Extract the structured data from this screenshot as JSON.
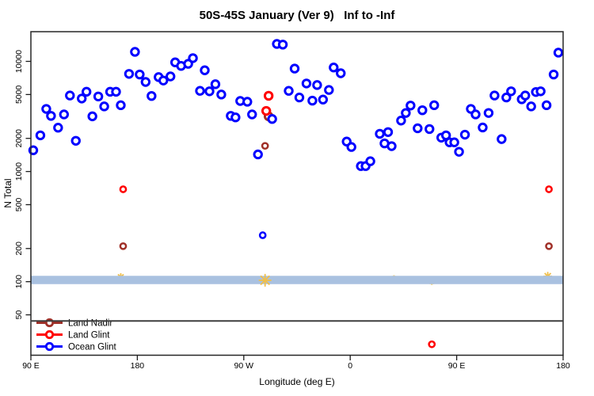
{
  "title": "50S-45S January (Ver 9)   Inf to -Inf",
  "chart_data": {
    "type": "scatter",
    "title": "50S-45S January (Ver 9)   Inf to -Inf",
    "xlabel": "Longitude (deg E)",
    "ylabel": "N Total",
    "grid": false,
    "x_axis": {
      "min": 90,
      "max": 540,
      "ticks": [
        {
          "value": 90,
          "label": "90 E"
        },
        {
          "value": 180,
          "label": "180"
        },
        {
          "value": 270,
          "label": "90 W"
        },
        {
          "value": 360,
          "label": "0"
        },
        {
          "value": 450,
          "label": "90 E"
        },
        {
          "value": 540,
          "label": "180"
        }
      ]
    },
    "y_axis": {
      "scale": "log",
      "min": 21.5,
      "max": 18600,
      "ticks": [
        50,
        100,
        200,
        500,
        1000,
        2000,
        5000,
        10000
      ]
    },
    "band": {
      "n_low": 95,
      "n_high": 113,
      "color": "#a9c1e0"
    },
    "threshold_line": {
      "n": 44,
      "color": "#3f3f3f"
    },
    "legend": {
      "position": "bottom-left",
      "entries": [
        "Land Nadir",
        "Land Glint",
        "Ocean Glint"
      ]
    },
    "series": [
      {
        "name": "Land Nadir",
        "color": "#A03028",
        "marker": "open-circle",
        "in_legend": true,
        "points": [
          [
            168,
            210,
            1
          ],
          [
            288,
            1710,
            1
          ],
          [
            291,
            3170,
            0
          ],
          [
            528,
            210,
            1
          ]
        ]
      },
      {
        "name": "Land Glint",
        "color": "#FF0000",
        "marker": "open-circle",
        "in_legend": true,
        "points": [
          [
            168,
            690,
            1
          ],
          [
            289,
            3550,
            0
          ],
          [
            291,
            4870,
            0
          ],
          [
            429,
            27,
            1
          ],
          [
            528,
            690,
            1
          ]
        ]
      },
      {
        "name": "Ocean Glint",
        "color": "#0000FF",
        "marker": "open-circle",
        "in_legend": true,
        "points": [
          [
            92,
            1560,
            0
          ],
          [
            98,
            2130,
            0
          ],
          [
            103,
            3700,
            0
          ],
          [
            107,
            3200,
            0
          ],
          [
            113,
            2500,
            0
          ],
          [
            118,
            3300,
            0
          ],
          [
            123,
            4900,
            0
          ],
          [
            128,
            1900,
            0
          ],
          [
            133,
            4600,
            0
          ],
          [
            137,
            5300,
            0
          ],
          [
            142,
            3170,
            0
          ],
          [
            147,
            4800,
            0
          ],
          [
            152,
            3900,
            0
          ],
          [
            157,
            5300,
            0
          ],
          [
            162,
            5300,
            0
          ],
          [
            166,
            4000,
            0
          ],
          [
            173,
            7700,
            0
          ],
          [
            178,
            12200,
            0
          ],
          [
            182,
            7600,
            0
          ],
          [
            187,
            6500,
            0
          ],
          [
            192,
            4850,
            0
          ],
          [
            198,
            7200,
            0
          ],
          [
            202,
            6700,
            0
          ],
          [
            208,
            7300,
            0
          ],
          [
            212,
            9800,
            0
          ],
          [
            217,
            9100,
            0
          ],
          [
            223,
            9500,
            0
          ],
          [
            227,
            10700,
            0
          ],
          [
            233,
            5400,
            0
          ],
          [
            237,
            8300,
            0
          ],
          [
            241,
            5350,
            0
          ],
          [
            246,
            6200,
            0
          ],
          [
            251,
            5000,
            0
          ],
          [
            259,
            3200,
            0
          ],
          [
            263,
            3100,
            0
          ],
          [
            267,
            4370,
            0
          ],
          [
            273,
            4300,
            0
          ],
          [
            277,
            3300,
            0
          ],
          [
            282,
            1430,
            0
          ],
          [
            286,
            264,
            1
          ],
          [
            294,
            3000,
            0
          ],
          [
            298,
            14400,
            0
          ],
          [
            303,
            14200,
            0
          ],
          [
            308,
            5400,
            0
          ],
          [
            313,
            8600,
            0
          ],
          [
            317,
            4700,
            0
          ],
          [
            323,
            6300,
            0
          ],
          [
            328,
            4400,
            0
          ],
          [
            332,
            6100,
            0
          ],
          [
            337,
            4500,
            0
          ],
          [
            342,
            5500,
            0
          ],
          [
            346,
            8800,
            0
          ],
          [
            352,
            7800,
            0
          ],
          [
            357,
            1870,
            0
          ],
          [
            361,
            1670,
            0
          ],
          [
            369,
            1120,
            0
          ],
          [
            373,
            1120,
            0
          ],
          [
            377,
            1240,
            0
          ],
          [
            385,
            2200,
            0
          ],
          [
            389,
            1800,
            0
          ],
          [
            392,
            2280,
            0
          ],
          [
            395,
            1700,
            0
          ],
          [
            403,
            2900,
            0
          ],
          [
            407,
            3400,
            0
          ],
          [
            411,
            3970,
            0
          ],
          [
            417,
            2470,
            0
          ],
          [
            421,
            3600,
            0
          ],
          [
            427,
            2430,
            0
          ],
          [
            431,
            4000,
            0
          ],
          [
            437,
            2030,
            0
          ],
          [
            441,
            2130,
            0
          ],
          [
            444,
            1840,
            0
          ],
          [
            448,
            1840,
            0
          ],
          [
            452,
            1510,
            0
          ],
          [
            457,
            2160,
            0
          ],
          [
            462,
            3700,
            0
          ],
          [
            466,
            3300,
            0
          ],
          [
            472,
            2510,
            0
          ],
          [
            477,
            3400,
            0
          ],
          [
            482,
            4900,
            0
          ],
          [
            488,
            1970,
            0
          ],
          [
            492,
            4700,
            0
          ],
          [
            496,
            5350,
            0
          ],
          [
            505,
            4530,
            0
          ],
          [
            508,
            4900,
            0
          ],
          [
            513,
            3900,
            0
          ],
          [
            517,
            5270,
            0
          ],
          [
            521,
            5350,
            0
          ],
          [
            526,
            4000,
            0
          ],
          [
            532,
            7600,
            0
          ],
          [
            536,
            12000,
            0
          ]
        ]
      },
      {
        "name": "flagged",
        "color": "#f0bf4a",
        "marker": "asterisk",
        "in_legend": false,
        "points": [
          [
            166,
            110,
            5
          ],
          [
            288,
            103,
            8
          ],
          [
            397,
            107,
            4
          ],
          [
            429,
            100,
            4
          ],
          [
            527,
            112,
            5.5
          ]
        ]
      }
    ]
  }
}
